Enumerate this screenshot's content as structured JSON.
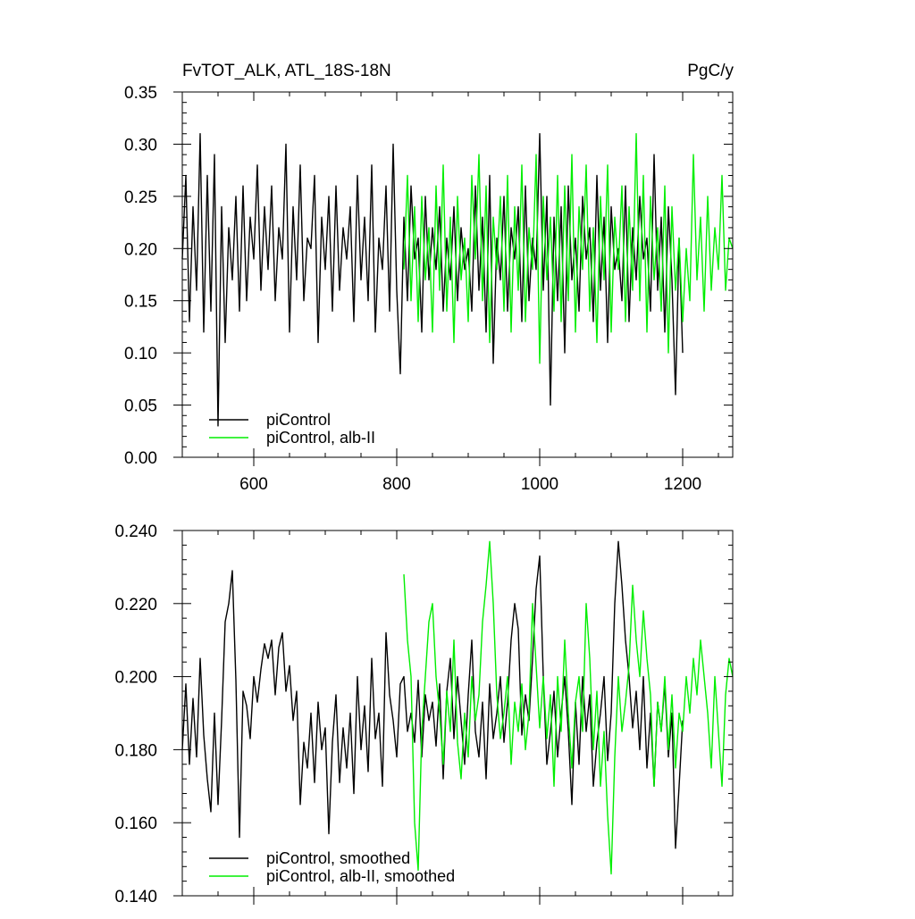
{
  "chart_data": [
    {
      "type": "line",
      "title": "FvTOT_ALK, ATL_18S-18N",
      "units": "PgC/y",
      "xlim": [
        500,
        1270
      ],
      "ylim": [
        0.0,
        0.35
      ],
      "x_ticks": [
        600,
        800,
        1000,
        1200
      ],
      "x_tick_labels": [
        "600",
        "800",
        "1000",
        "1200"
      ],
      "y_ticks": [
        0.0,
        0.05,
        0.1,
        0.15,
        0.2,
        0.25,
        0.3,
        0.35
      ],
      "y_tick_labels": [
        "0.00",
        "0.05",
        "0.10",
        "0.15",
        "0.20",
        "0.25",
        "0.30",
        "0.35"
      ],
      "grid": false,
      "legend": "bottom-left",
      "series": [
        {
          "name": "piControl",
          "color": "#000000",
          "x": [
            500,
            505,
            510,
            515,
            520,
            525,
            530,
            535,
            540,
            545,
            550,
            555,
            560,
            565,
            570,
            575,
            580,
            585,
            590,
            595,
            600,
            605,
            610,
            615,
            620,
            625,
            630,
            635,
            640,
            645,
            650,
            655,
            660,
            665,
            670,
            675,
            680,
            685,
            690,
            695,
            700,
            705,
            710,
            715,
            720,
            725,
            730,
            735,
            740,
            745,
            750,
            755,
            760,
            765,
            770,
            775,
            780,
            785,
            790,
            795,
            800,
            805,
            810,
            815,
            820,
            825,
            830,
            835,
            840,
            845,
            850,
            855,
            860,
            865,
            870,
            875,
            880,
            885,
            890,
            895,
            900,
            905,
            910,
            915,
            920,
            925,
            930,
            935,
            940,
            945,
            950,
            955,
            960,
            965,
            970,
            975,
            980,
            985,
            990,
            995,
            1000,
            1005,
            1010,
            1015,
            1020,
            1025,
            1030,
            1035,
            1040,
            1045,
            1050,
            1055,
            1060,
            1065,
            1070,
            1075,
            1080,
            1085,
            1090,
            1095,
            1100,
            1105,
            1110,
            1115,
            1120,
            1125,
            1130,
            1135,
            1140,
            1145,
            1150,
            1155,
            1160,
            1165,
            1170,
            1175,
            1180,
            1185,
            1190,
            1195,
            1200
          ],
          "values": [
            0.19,
            0.27,
            0.13,
            0.24,
            0.16,
            0.31,
            0.12,
            0.27,
            0.14,
            0.29,
            0.03,
            0.24,
            0.11,
            0.22,
            0.17,
            0.25,
            0.14,
            0.26,
            0.15,
            0.23,
            0.19,
            0.28,
            0.16,
            0.24,
            0.18,
            0.26,
            0.15,
            0.22,
            0.19,
            0.3,
            0.12,
            0.24,
            0.17,
            0.28,
            0.15,
            0.21,
            0.2,
            0.27,
            0.11,
            0.23,
            0.18,
            0.25,
            0.14,
            0.26,
            0.16,
            0.22,
            0.19,
            0.24,
            0.13,
            0.27,
            0.17,
            0.23,
            0.15,
            0.28,
            0.12,
            0.21,
            0.18,
            0.26,
            0.14,
            0.3,
            0.16,
            0.08,
            0.23,
            0.15,
            0.26,
            0.19,
            0.21,
            0.12,
            0.25,
            0.17,
            0.22,
            0.18,
            0.24,
            0.14,
            0.21,
            0.17,
            0.24,
            0.15,
            0.22,
            0.18,
            0.2,
            0.14,
            0.26,
            0.16,
            0.23,
            0.12,
            0.27,
            0.09,
            0.21,
            0.17,
            0.25,
            0.14,
            0.22,
            0.19,
            0.24,
            0.13,
            0.26,
            0.15,
            0.21,
            0.18,
            0.31,
            0.16,
            0.25,
            0.05,
            0.23,
            0.15,
            0.24,
            0.1,
            0.26,
            0.17,
            0.21,
            0.14,
            0.25,
            0.19,
            0.22,
            0.13,
            0.27,
            0.16,
            0.23,
            0.11,
            0.24,
            0.18,
            0.2,
            0.15,
            0.26,
            0.13,
            0.22,
            0.17,
            0.25,
            0.19,
            0.21,
            0.14,
            0.29,
            0.16,
            0.23,
            0.12,
            0.24,
            0.17,
            0.06,
            0.21,
            0.1
          ],
          "values_note": ""
        },
        {
          "name": "piControl, alb-II",
          "color": "#00ee00",
          "x": [
            810,
            815,
            820,
            825,
            830,
            835,
            840,
            845,
            850,
            855,
            860,
            865,
            870,
            875,
            880,
            885,
            890,
            895,
            900,
            905,
            910,
            915,
            920,
            925,
            930,
            935,
            940,
            945,
            950,
            955,
            960,
            965,
            970,
            975,
            980,
            985,
            990,
            995,
            1000,
            1005,
            1010,
            1015,
            1020,
            1025,
            1030,
            1035,
            1040,
            1045,
            1050,
            1055,
            1060,
            1065,
            1070,
            1075,
            1080,
            1085,
            1090,
            1095,
            1100,
            1105,
            1110,
            1115,
            1120,
            1125,
            1130,
            1135,
            1140,
            1145,
            1150,
            1155,
            1160,
            1165,
            1170,
            1175,
            1180,
            1185,
            1190,
            1195,
            1200,
            1205,
            1210,
            1215,
            1220,
            1225,
            1230,
            1235,
            1240,
            1245,
            1250,
            1255,
            1260,
            1265,
            1270
          ],
          "values": [
            0.18,
            0.27,
            0.15,
            0.24,
            0.13,
            0.25,
            0.17,
            0.22,
            0.12,
            0.26,
            0.16,
            0.28,
            0.14,
            0.23,
            0.11,
            0.25,
            0.17,
            0.21,
            0.13,
            0.27,
            0.19,
            0.29,
            0.15,
            0.26,
            0.11,
            0.23,
            0.18,
            0.25,
            0.14,
            0.27,
            0.12,
            0.24,
            0.16,
            0.28,
            0.13,
            0.22,
            0.18,
            0.29,
            0.09,
            0.25,
            0.17,
            0.23,
            0.14,
            0.27,
            0.13,
            0.26,
            0.15,
            0.29,
            0.12,
            0.24,
            0.18,
            0.28,
            0.14,
            0.22,
            0.11,
            0.25,
            0.17,
            0.28,
            0.12,
            0.23,
            0.18,
            0.26,
            0.13,
            0.24,
            0.16,
            0.31,
            0.15,
            0.27,
            0.12,
            0.25,
            0.17,
            0.22,
            0.14,
            0.26,
            0.1,
            0.24,
            0.16,
            0.21,
            0.13,
            0.2,
            0.15,
            0.29,
            0.17,
            0.23,
            0.14,
            0.25,
            0.16,
            0.22,
            0.18,
            0.27,
            0.16,
            0.21,
            0.2
          ],
          "values_note": ""
        }
      ]
    },
    {
      "type": "line",
      "xlim": [
        500,
        1270
      ],
      "ylim": [
        0.14,
        0.24
      ],
      "x_ticks": [
        600,
        800,
        1000,
        1200
      ],
      "y_ticks": [
        0.14,
        0.16,
        0.18,
        0.2,
        0.22,
        0.24
      ],
      "y_tick_labels": [
        "0.140",
        "0.160",
        "0.180",
        "0.200",
        "0.220",
        "0.240"
      ],
      "grid": false,
      "legend": "bottom-left",
      "series": [
        {
          "name": "piControl, smoothed",
          "color": "#000000",
          "x": [
            500,
            505,
            510,
            515,
            520,
            525,
            530,
            535,
            540,
            545,
            550,
            555,
            560,
            565,
            570,
            575,
            580,
            585,
            590,
            595,
            600,
            605,
            610,
            615,
            620,
            625,
            630,
            635,
            640,
            645,
            650,
            655,
            660,
            665,
            670,
            675,
            680,
            685,
            690,
            695,
            700,
            705,
            710,
            715,
            720,
            725,
            730,
            735,
            740,
            745,
            750,
            755,
            760,
            765,
            770,
            775,
            780,
            785,
            790,
            795,
            800,
            805,
            810,
            815,
            820,
            825,
            830,
            835,
            840,
            845,
            850,
            855,
            860,
            865,
            870,
            875,
            880,
            885,
            890,
            895,
            900,
            905,
            910,
            915,
            920,
            925,
            930,
            935,
            940,
            945,
            950,
            955,
            960,
            965,
            970,
            975,
            980,
            985,
            990,
            995,
            1000,
            1005,
            1010,
            1015,
            1020,
            1025,
            1030,
            1035,
            1040,
            1045,
            1050,
            1055,
            1060,
            1065,
            1070,
            1075,
            1080,
            1085,
            1090,
            1095,
            1100,
            1105,
            1110,
            1115,
            1120,
            1125,
            1130,
            1135,
            1140,
            1145,
            1150,
            1155,
            1160,
            1165,
            1170,
            1175,
            1180,
            1185,
            1190,
            1195,
            1200
          ],
          "values": [
            0.18,
            0.198,
            0.176,
            0.194,
            0.178,
            0.205,
            0.184,
            0.172,
            0.163,
            0.19,
            0.165,
            0.188,
            0.215,
            0.22,
            0.229,
            0.199,
            0.156,
            0.196,
            0.192,
            0.183,
            0.2,
            0.193,
            0.202,
            0.209,
            0.205,
            0.21,
            0.195,
            0.208,
            0.212,
            0.196,
            0.203,
            0.188,
            0.196,
            0.165,
            0.182,
            0.175,
            0.19,
            0.171,
            0.193,
            0.18,
            0.186,
            0.157,
            0.182,
            0.195,
            0.171,
            0.186,
            0.175,
            0.19,
            0.168,
            0.2,
            0.18,
            0.192,
            0.174,
            0.205,
            0.183,
            0.19,
            0.17,
            0.212,
            0.195,
            0.188,
            0.178,
            0.198,
            0.2,
            0.185,
            0.19,
            0.182,
            0.199,
            0.178,
            0.195,
            0.188,
            0.193,
            0.181,
            0.198,
            0.172,
            0.196,
            0.205,
            0.183,
            0.2,
            0.188,
            0.176,
            0.195,
            0.21,
            0.185,
            0.178,
            0.193,
            0.172,
            0.198,
            0.183,
            0.19,
            0.2,
            0.182,
            0.193,
            0.21,
            0.22,
            0.213,
            0.184,
            0.195,
            0.188,
            0.205,
            0.224,
            0.233,
            0.2,
            0.176,
            0.185,
            0.196,
            0.178,
            0.19,
            0.2,
            0.185,
            0.165,
            0.193,
            0.176,
            0.2,
            0.185,
            0.195,
            0.17,
            0.182,
            0.19,
            0.2,
            0.177,
            0.19,
            0.22,
            0.237,
            0.225,
            0.21,
            0.2,
            0.186,
            0.196,
            0.18,
            0.2,
            0.175,
            0.19,
            0.17,
            0.193,
            0.185,
            0.198,
            0.178,
            0.19,
            0.153,
            0.17,
            0.188
          ],
          "values_note": ""
        },
        {
          "name": "piControl, alb-II, smoothed",
          "color": "#00ee00",
          "x": [
            810,
            815,
            820,
            825,
            830,
            835,
            840,
            845,
            850,
            855,
            860,
            865,
            870,
            875,
            880,
            885,
            890,
            895,
            900,
            905,
            910,
            915,
            920,
            925,
            930,
            935,
            940,
            945,
            950,
            955,
            960,
            965,
            970,
            975,
            980,
            985,
            990,
            995,
            1000,
            1005,
            1010,
            1015,
            1020,
            1025,
            1030,
            1035,
            1040,
            1045,
            1050,
            1055,
            1060,
            1065,
            1070,
            1075,
            1080,
            1085,
            1090,
            1095,
            1100,
            1105,
            1110,
            1115,
            1120,
            1125,
            1130,
            1135,
            1140,
            1145,
            1150,
            1155,
            1160,
            1165,
            1170,
            1175,
            1180,
            1185,
            1190,
            1195,
            1200,
            1205,
            1210,
            1215,
            1220,
            1225,
            1230,
            1235,
            1240,
            1245,
            1250,
            1255,
            1260,
            1265,
            1270
          ],
          "values": [
            0.228,
            0.21,
            0.2,
            0.16,
            0.147,
            0.185,
            0.2,
            0.215,
            0.22,
            0.2,
            0.19,
            0.176,
            0.196,
            0.185,
            0.21,
            0.182,
            0.172,
            0.19,
            0.178,
            0.2,
            0.188,
            0.195,
            0.215,
            0.225,
            0.237,
            0.22,
            0.195,
            0.183,
            0.19,
            0.2,
            0.176,
            0.193,
            0.185,
            0.198,
            0.18,
            0.19,
            0.22,
            0.203,
            0.186,
            0.2,
            0.183,
            0.195,
            0.17,
            0.2,
            0.185,
            0.21,
            0.19,
            0.175,
            0.193,
            0.2,
            0.185,
            0.22,
            0.205,
            0.18,
            0.196,
            0.17,
            0.185,
            0.162,
            0.146,
            0.178,
            0.2,
            0.185,
            0.193,
            0.203,
            0.225,
            0.21,
            0.2,
            0.218,
            0.205,
            0.195,
            0.17,
            0.193,
            0.185,
            0.2,
            0.18,
            0.195,
            0.175,
            0.19,
            0.185,
            0.2,
            0.19,
            0.205,
            0.195,
            0.21,
            0.2,
            0.19,
            0.175,
            0.2,
            0.185,
            0.17,
            0.195,
            0.205,
            0.2
          ],
          "values_note": ""
        }
      ]
    }
  ]
}
